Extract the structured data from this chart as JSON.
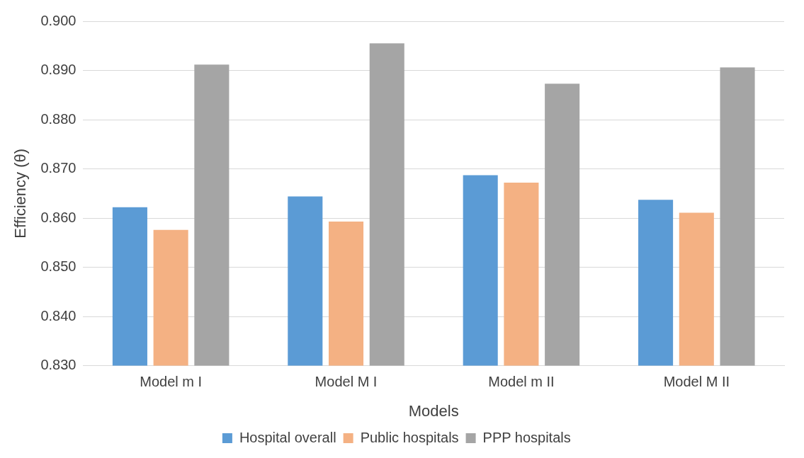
{
  "chart_data": {
    "type": "bar",
    "xlabel": "Models",
    "ylabel": "Efficiency (θ)",
    "categories": [
      "Model m I",
      "Model M I",
      "Model m II",
      "Model M II"
    ],
    "series": [
      {
        "name": "Hospital overall",
        "color": "#5b9bd5",
        "values": [
          0.8622,
          0.8644,
          0.8687,
          0.8637
        ]
      },
      {
        "name": "Public hospitals",
        "color": "#f4b183",
        "values": [
          0.8576,
          0.8593,
          0.8672,
          0.8611
        ]
      },
      {
        "name": "PPP hospitals",
        "color": "#a5a5a5",
        "values": [
          0.8912,
          0.8955,
          0.8873,
          0.8906
        ]
      }
    ],
    "ylim": [
      0.83,
      0.9
    ],
    "yticks": [
      {
        "value": 0.83,
        "label": "0.830"
      },
      {
        "value": 0.84,
        "label": "0.840"
      },
      {
        "value": 0.85,
        "label": "0.850"
      },
      {
        "value": 0.86,
        "label": "0.860"
      },
      {
        "value": 0.87,
        "label": "0.870"
      },
      {
        "value": 0.88,
        "label": "0.880"
      },
      {
        "value": 0.89,
        "label": "0.890"
      },
      {
        "value": 0.9,
        "label": "0.900"
      }
    ],
    "grid": "y",
    "legend": "bottom"
  }
}
